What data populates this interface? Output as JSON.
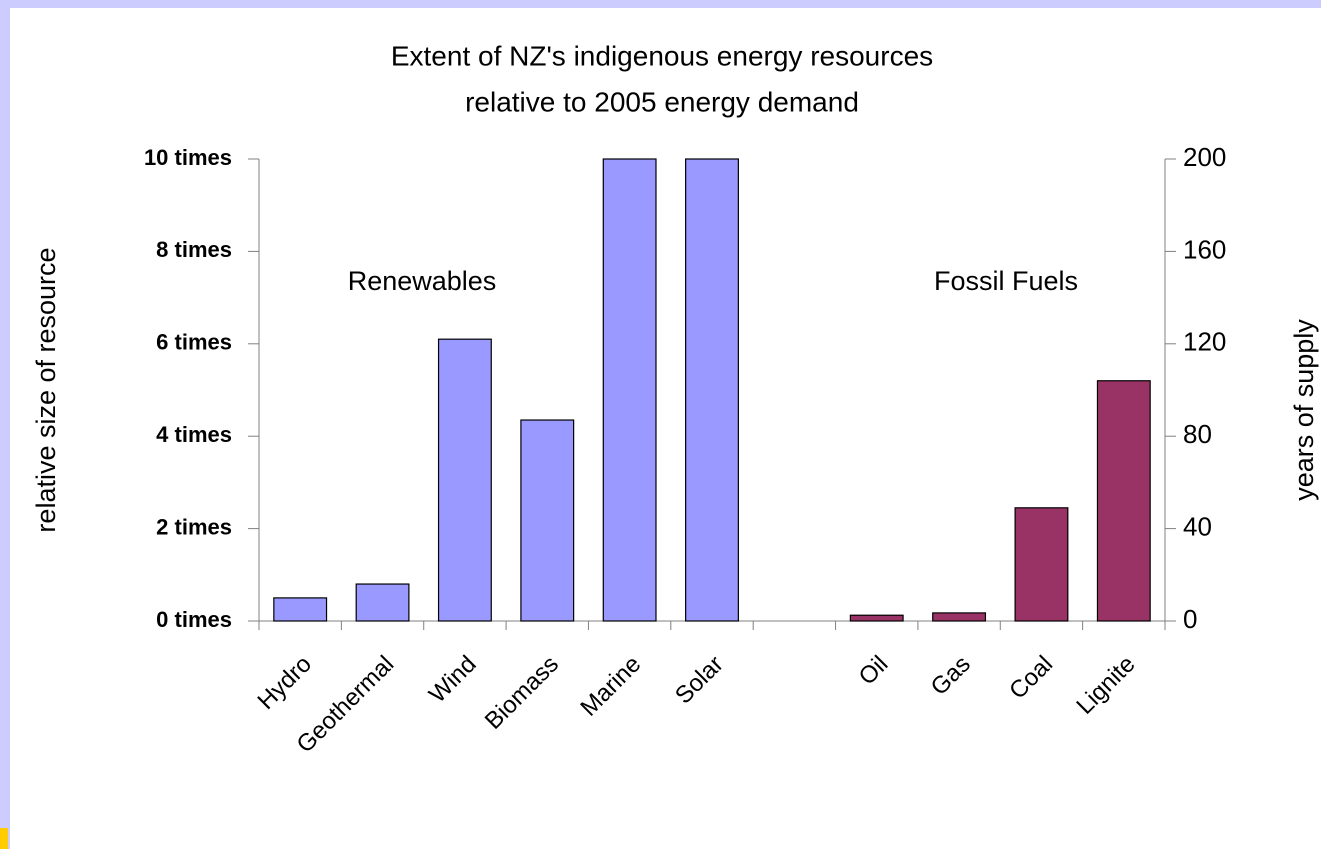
{
  "chart_data": {
    "type": "bar",
    "title": [
      "Extent of NZ's indigenous energy resources",
      "relative to 2005 energy demand"
    ],
    "categories": [
      "Hydro",
      "Geothermal",
      "Wind",
      "Biomass",
      "Marine",
      "Solar",
      null,
      "Oil",
      "Gas",
      "Coal",
      "Lignite"
    ],
    "series": [
      {
        "name": "Renewables",
        "color": "#9999ff",
        "values": [
          0.5,
          0.8,
          6.1,
          4.35,
          10,
          10,
          null,
          null,
          null,
          null,
          null
        ]
      },
      {
        "name": "Fossil Fuels",
        "color": "#993366",
        "axis": "y2",
        "values": [
          null,
          null,
          null,
          null,
          null,
          null,
          null,
          2.5,
          3.5,
          49,
          104
        ]
      }
    ],
    "ylabel": "relative size of resource",
    "y2label": "years of supply",
    "ylim": [
      0,
      10
    ],
    "yticks": [
      {
        "value": 0,
        "label": "0 times"
      },
      {
        "value": 2,
        "label": "2 times"
      },
      {
        "value": 4,
        "label": "4 times"
      },
      {
        "value": 6,
        "label": "6 times"
      },
      {
        "value": 8,
        "label": "8 times"
      },
      {
        "value": 10,
        "label": "10 times"
      }
    ],
    "y2lim": [
      0,
      200
    ],
    "y2ticks": [
      0,
      40,
      80,
      120,
      160,
      200
    ],
    "grid": false
  }
}
